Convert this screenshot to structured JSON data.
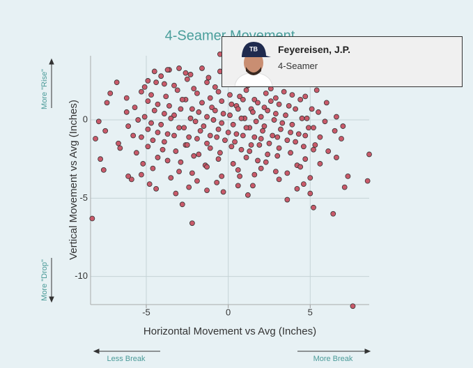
{
  "chart_data": {
    "type": "scatter",
    "title": "4-Seamer Movement",
    "x_label": "Horizontal Movement vs Avg (Inches)",
    "y_label": "Vertical Movement vs Avg (Inches)",
    "annotations": {
      "rise": "More \"Rise\"",
      "drop": "More \"Drop\"",
      "less_break": "Less Break",
      "more_break": "More Break"
    },
    "color": "#c95a6a",
    "grid": true,
    "xlim": [
      -8.4,
      8.6
    ],
    "ylim": [
      -11.8,
      4.1
    ],
    "xticks": [
      -5,
      0,
      5
    ],
    "yticks": [
      0,
      -5,
      -10
    ],
    "x": [
      -4.5,
      -4.1,
      -3.6,
      -2.6,
      -2.3,
      -1.6,
      -1.2,
      -0.5,
      0.1,
      0.9,
      1.5,
      2.2,
      -3.0,
      -6.8,
      -5.1,
      -4.9,
      -3.9,
      -3.3,
      -2.5,
      -2.1,
      -1.3,
      -0.8,
      -0.2,
      0.4,
      1.2,
      1.9,
      2.6,
      -4.4,
      -7.2,
      -6.2,
      -5.3,
      -4.7,
      -3.8,
      -3.1,
      -2.6,
      -1.9,
      -1.1,
      -0.6,
      0.1,
      0.7,
      1.1,
      1.6,
      2.3,
      2.9,
      3.4,
      3.9,
      4.7,
      5.4,
      -7.4,
      -5.7,
      -4.9,
      -4.3,
      -3.6,
      -2.8,
      -2.2,
      -1.6,
      -1.0,
      -0.4,
      0.2,
      0.5,
      0.9,
      1.4,
      1.8,
      2.2,
      2.6,
      3.1,
      3.7,
      4.4,
      5.1,
      6.0,
      -6.2,
      -5.1,
      -4.5,
      -3.9,
      -3.3,
      -2.9,
      -2.3,
      -1.8,
      -1.3,
      -0.8,
      -0.3,
      0.1,
      0.6,
      1.0,
      1.5,
      2.0,
      2.4,
      2.9,
      3.5,
      4.1,
      4.8,
      5.5,
      6.6,
      -7.9,
      -6.1,
      -5.5,
      -4.7,
      -4.1,
      -3.5,
      -2.7,
      -2.0,
      -1.5,
      -0.9,
      -0.4,
      0.3,
      0.8,
      1.3,
      1.7,
      2.2,
      2.8,
      3.3,
      3.9,
      4.5,
      5.2,
      5.9,
      7.0,
      -7.5,
      -5.8,
      -4.9,
      -4.3,
      -3.7,
      -3.0,
      -2.4,
      -1.7,
      -1.1,
      -0.6,
      0.0,
      0.5,
      1.1,
      1.6,
      2.1,
      2.7,
      3.2,
      3.8,
      4.3,
      4.9,
      5.6,
      6.5,
      -8.1,
      -6.7,
      -5.3,
      -4.6,
      -3.9,
      -3.3,
      -2.6,
      -1.9,
      -1.3,
      -0.7,
      -0.2,
      0.4,
      0.9,
      1.4,
      2.0,
      2.5,
      3.0,
      3.6,
      4.1,
      4.7,
      5.3,
      6.9,
      -6.6,
      -5.6,
      -4.9,
      -4.0,
      -3.2,
      -2.5,
      -1.8,
      -1.1,
      -0.5,
      0.2,
      0.8,
      1.3,
      1.9,
      2.4,
      3.1,
      3.8,
      4.6,
      5.2,
      6.1,
      8.6,
      -7.8,
      -5.2,
      -4.3,
      -3.7,
      -2.9,
      -2.1,
      -1.4,
      -0.6,
      0.3,
      1.1,
      1.8,
      2.3,
      3.0,
      4.2,
      4.7,
      5.6,
      6.6,
      -7.6,
      -5.3,
      -4.6,
      -3.0,
      -2.2,
      -1.3,
      -0.4,
      0.6,
      1.6,
      2.0,
      2.9,
      3.6,
      4.4,
      7.3,
      -5.9,
      -4.8,
      -3.5,
      -1.9,
      -0.7,
      0.7,
      1.5,
      3.1,
      4.6,
      5.0,
      8.5,
      -4.4,
      -3.2,
      -2.4,
      -1.3,
      -0.3,
      0.6,
      1.2,
      4.2,
      5.0,
      7.1,
      -8.3,
      -2.2,
      -2.8,
      7.6,
      6.4,
      5.2,
      3.6,
      -6.1,
      -0.5,
      -3.7
    ],
    "values": [
      3.1,
      2.8,
      3.2,
      3.0,
      2.9,
      3.3,
      2.7,
      3.1,
      2.8,
      3.2,
      3.0,
      2.9,
      3.3,
      2.4,
      2.1,
      2.5,
      2.3,
      2.2,
      2.6,
      2.0,
      2.4,
      2.1,
      2.5,
      2.3,
      2.2,
      2.6,
      2.0,
      2.4,
      1.7,
      1.4,
      1.8,
      1.6,
      1.5,
      1.9,
      1.3,
      1.7,
      1.4,
      1.8,
      1.6,
      1.5,
      1.9,
      1.3,
      1.7,
      1.4,
      1.8,
      1.6,
      1.5,
      1.9,
      1.1,
      0.8,
      1.2,
      1.0,
      0.9,
      1.3,
      0.7,
      1.1,
      0.8,
      1.2,
      1.0,
      0.9,
      1.3,
      0.7,
      1.1,
      0.8,
      1.2,
      1.0,
      0.9,
      1.3,
      0.7,
      1.1,
      0.5,
      0.2,
      0.6,
      0.4,
      0.3,
      0.7,
      0.1,
      0.5,
      0.2,
      0.6,
      0.4,
      0.3,
      0.7,
      0.1,
      0.5,
      0.2,
      0.6,
      0.4,
      0.3,
      0.7,
      0.1,
      0.5,
      0.2,
      -0.1,
      -0.4,
      0,
      -0.2,
      -0.3,
      0.1,
      -0.5,
      -0.1,
      -0.4,
      0,
      -0.2,
      -0.3,
      0.1,
      -0.5,
      -0.1,
      -0.4,
      0,
      -0.2,
      -0.3,
      0.1,
      -0.5,
      -0.1,
      -0.4,
      -0.7,
      -1.0,
      -0.6,
      -0.8,
      -0.9,
      -0.5,
      -1.1,
      -0.7,
      -1.0,
      -0.6,
      -0.8,
      -0.9,
      -0.5,
      -1.1,
      -0.7,
      -1.0,
      -0.6,
      -0.8,
      -0.9,
      -0.5,
      -1.1,
      -0.7,
      -1.2,
      -1.5,
      -1.1,
      -1.3,
      -1.4,
      -1.0,
      -1.6,
      -1.2,
      -1.5,
      -1.1,
      -1.3,
      -1.4,
      -1.0,
      -1.6,
      -1.2,
      -1.5,
      -1.1,
      -1.3,
      -1.4,
      -1.0,
      -1.6,
      -1.2,
      -1.8,
      -2.1,
      -1.7,
      -1.9,
      -2.0,
      -1.6,
      -2.2,
      -1.8,
      -2.1,
      -1.7,
      -1.9,
      -2.0,
      -1.6,
      -2.2,
      -1.8,
      -2.1,
      -1.7,
      -1.9,
      -2.0,
      -2.2,
      -2.5,
      -2.8,
      -2.4,
      -2.6,
      -2.7,
      -2.3,
      -2.9,
      -2.5,
      -2.8,
      -2.4,
      -2.6,
      -2.7,
      -2.3,
      -2.9,
      -2.5,
      -2.8,
      -2.4,
      -3.2,
      -3.5,
      -3.1,
      -3.3,
      -3.4,
      -3.0,
      -3.6,
      -3.2,
      -3.5,
      -3.1,
      -3.3,
      -3.4,
      -3.0,
      -3.6,
      -3.8,
      -4.1,
      -3.7,
      -3.9,
      -4.0,
      -3.6,
      -4.2,
      -3.8,
      -4.1,
      -3.7,
      -3.9,
      -4.4,
      -4.7,
      -4.3,
      -4.5,
      -4.6,
      -4.2,
      -4.8,
      -4.4,
      -4.7,
      -4.3,
      -6.3,
      -6.6,
      -5.4,
      -11.9,
      -6.0,
      -5.6,
      -5.1,
      -3.6,
      4.2,
      3.2
    ]
  },
  "tooltip": {
    "name": "Feyereisen, J.P.",
    "pitch": "4-Seamer"
  }
}
